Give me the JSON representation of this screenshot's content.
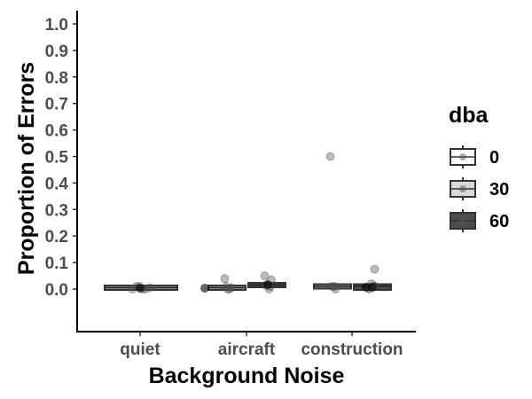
{
  "chart_data": {
    "type": "box",
    "title": "",
    "xlabel": "Background Noise",
    "ylabel": "Proportion of Errors",
    "ylim": [
      0.0,
      1.0
    ],
    "yticks": [
      0.0,
      0.1,
      0.2,
      0.3,
      0.4,
      0.5,
      0.6,
      0.7,
      0.8,
      0.9,
      1.0
    ],
    "ytick_labels": [
      "0.0",
      "0.1",
      "0.2",
      "0.3",
      "0.4",
      "0.5",
      "0.6",
      "0.7",
      "0.8",
      "0.9",
      "1.0"
    ],
    "categories": [
      "quiet",
      "aircraft",
      "construction"
    ],
    "grid": false,
    "legend": {
      "title": "dba",
      "position": "right",
      "entries": [
        {
          "label": "0",
          "fill": "#ffffff"
        },
        {
          "label": "30",
          "fill": "#d9d9d9"
        },
        {
          "label": "60",
          "fill": "#4d4d4d"
        }
      ]
    },
    "series": [
      {
        "category": "quiet",
        "dba": "0",
        "box": {
          "q1": 0.0,
          "median": 0.005,
          "q3": 0.01
        },
        "points": [
          0.0,
          0.0,
          0.005,
          0.01,
          0.0,
          0.01
        ]
      },
      {
        "category": "aircraft",
        "dba": "30",
        "box": {
          "q1": 0.0,
          "median": 0.005,
          "q3": 0.01
        },
        "points": [
          0.0,
          0.005,
          0.04,
          0.0,
          0.01
        ]
      },
      {
        "category": "aircraft",
        "dba": "60",
        "box": {
          "q1": 0.01,
          "median": 0.015,
          "q3": 0.02
        },
        "points": [
          0.035,
          0.05,
          0.0,
          0.015,
          0.01
        ]
      },
      {
        "category": "construction",
        "dba": "30",
        "box": {
          "q1": 0.005,
          "median": 0.01,
          "q3": 0.015
        },
        "points": [
          0.5,
          0.01,
          0.01,
          0.0
        ]
      },
      {
        "category": "construction",
        "dba": "60",
        "box": {
          "q1": 0.0,
          "median": 0.01,
          "q3": 0.015
        },
        "points": [
          0.075,
          0.02,
          0.01,
          0.0,
          0.005,
          0.01
        ]
      }
    ]
  }
}
